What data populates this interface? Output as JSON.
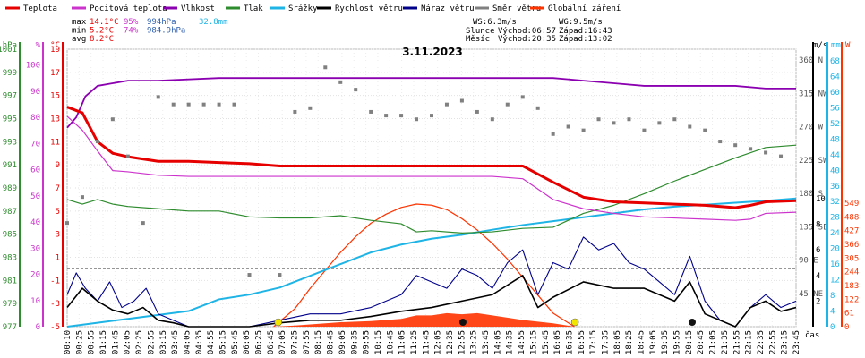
{
  "chart_data": {
    "type": "line",
    "title": "3.11.2023",
    "colors": {
      "teplota": "#e60000",
      "pocitova": "#cc33cc",
      "vlhkost": "#8b00b0",
      "tlak": "#2e8b2e",
      "srazky": "#1eb4e6",
      "rychlost": "#000000",
      "naraz": "#00008b",
      "smer": "#808080",
      "zareni": "#ff3300"
    },
    "legend": [
      {
        "key": "teplota",
        "label": "Teplota"
      },
      {
        "key": "pocitova",
        "label": "Pocitová teplota"
      },
      {
        "key": "vlhkost",
        "label": "Vlhkost"
      },
      {
        "key": "tlak",
        "label": "Tlak"
      },
      {
        "key": "srazky",
        "label": "Srážky"
      },
      {
        "key": "rychlost",
        "label": "Rychlost větru"
      },
      {
        "key": "naraz",
        "label": "Náraz větru"
      },
      {
        "key": "smer",
        "label": "Směr větru"
      },
      {
        "key": "zareni",
        "label": "Globální záření"
      }
    ],
    "stats": {
      "max_label": "max",
      "min_label": "min",
      "avg_label": "avg",
      "max_temp": "14.1°C",
      "max_hum": "95%",
      "max_press": "994hPa",
      "rain": "32.8mm",
      "min_temp": "5.2°C",
      "min_hum": "74%",
      "min_press": "984.9hPa",
      "avg_temp": "8.2°C"
    },
    "info": {
      "ws": "WS:6.3m/s",
      "wg": "WG:9.5m/s",
      "slunce": "Slunce",
      "sun_rise": "Východ:06:57",
      "sun_set": "Západ:16:43",
      "mesic": "Měsíc",
      "moon_rise": "Východ:20:35",
      "moon_set": "Západ:13:02"
    },
    "axes": {
      "hpa": {
        "unit": "hPa",
        "ticks": [
          1001,
          999,
          997,
          995,
          993,
          991,
          989,
          987,
          985,
          983,
          981,
          979,
          977
        ]
      },
      "pct": {
        "unit": "%",
        "ticks": [
          100,
          90,
          80,
          70,
          60,
          50,
          40,
          30,
          20,
          10,
          0
        ]
      },
      "temp": {
        "unit": "°C",
        "ticks": [
          19,
          17,
          15,
          13,
          11,
          9,
          7,
          5,
          3,
          1,
          -1,
          -3,
          -5
        ]
      },
      "dir": {
        "ticks": [
          "360 N",
          "315 NW",
          "270 W",
          "225 SW",
          "180 S",
          "135 SE",
          "90 E",
          "45 NE"
        ]
      },
      "ms": {
        "unit": "m/s",
        "ticks": [
          10,
          8,
          6,
          4,
          2
        ]
      },
      "mm": {
        "unit": "mm",
        "ticks": [
          68,
          64,
          60,
          56,
          52,
          48,
          44,
          40,
          36,
          32,
          28,
          24,
          20,
          16,
          12,
          8,
          4,
          0
        ]
      },
      "w": {
        "unit": "W",
        "ticks": [
          549,
          488,
          427,
          366,
          305,
          244,
          183,
          122,
          61,
          0
        ]
      },
      "x_label": "čas",
      "x_ticks": [
        "00:10",
        "00:25",
        "00:55",
        "01:15",
        "01:45",
        "02:05",
        "02:25",
        "02:55",
        "03:15",
        "03:45",
        "04:05",
        "04:35",
        "04:55",
        "05:15",
        "05:45",
        "06:05",
        "06:25",
        "06:45",
        "07:05",
        "07:25",
        "07:55",
        "08:15",
        "08:45",
        "09:05",
        "09:35",
        "09:55",
        "10:15",
        "10:45",
        "11:05",
        "11:25",
        "11:45",
        "12:05",
        "12:35",
        "12:55",
        "13:25",
        "13:45",
        "14:05",
        "14:35",
        "14:55",
        "15:15",
        "15:45",
        "16:05",
        "16:35",
        "16:55",
        "17:15",
        "17:35",
        "18:05",
        "18:25",
        "18:45",
        "19:05",
        "19:35",
        "19:55",
        "20:15",
        "20:45",
        "21:05",
        "21:35",
        "21:55",
        "22:15",
        "22:35",
        "22:55",
        "23:15",
        "23:45"
      ]
    },
    "series": {
      "teplota": {
        "x": [
          0,
          0.5,
          1,
          1.5,
          2,
          3,
          4,
          5,
          6,
          7,
          8,
          9,
          10,
          11,
          12,
          13,
          14,
          15,
          16,
          17,
          18,
          19,
          20,
          21,
          22,
          22.5,
          23,
          24
        ],
        "y": [
          14,
          13.5,
          11,
          10,
          9.7,
          9.3,
          9.3,
          9.2,
          9.1,
          8.9,
          8.9,
          8.9,
          8.9,
          8.9,
          8.9,
          8.9,
          8.9,
          8.9,
          7.5,
          6.2,
          5.8,
          5.7,
          5.6,
          5.5,
          5.3,
          5.5,
          5.8,
          5.9
        ]
      },
      "pocitova": {
        "x": [
          0,
          0.5,
          1,
          1.5,
          2,
          3,
          4,
          5,
          6,
          7,
          8,
          9,
          10,
          11,
          12,
          13,
          14,
          15,
          16,
          17,
          18,
          19,
          20,
          21,
          22,
          22.5,
          23,
          24
        ],
        "y": [
          13.2,
          12,
          10.2,
          8.5,
          8.4,
          8.1,
          8,
          8,
          8,
          8,
          8,
          8,
          8,
          8,
          8,
          8,
          8,
          7.8,
          6,
          5.2,
          4.8,
          4.5,
          4.4,
          4.3,
          4.2,
          4.3,
          4.8,
          4.9
        ]
      },
      "vlhkost": {
        "x": [
          0,
          0.3,
          0.6,
          1,
          1.5,
          2,
          3,
          5,
          8,
          10,
          12,
          14,
          16,
          17,
          18,
          19,
          20,
          21,
          22,
          23,
          24
        ],
        "y": [
          76,
          80,
          88,
          92,
          93,
          94,
          94,
          95,
          95,
          95,
          95,
          95,
          95,
          94,
          93,
          92,
          92,
          92,
          92,
          91,
          91
        ]
      },
      "tlak": {
        "x": [
          0,
          0.5,
          1,
          1.5,
          2,
          3,
          4,
          5,
          6,
          7,
          8,
          9,
          10,
          11,
          11.5,
          12,
          13,
          14,
          15,
          16,
          17,
          18,
          19,
          20,
          21,
          22,
          23,
          24
        ],
        "y": [
          988,
          987.6,
          988,
          987.6,
          987.4,
          987.2,
          987,
          987,
          986.5,
          986.4,
          986.4,
          986.6,
          986.2,
          985.9,
          985.2,
          985.3,
          985.1,
          985.2,
          985.5,
          985.6,
          986.8,
          987.5,
          988.5,
          989.6,
          990.6,
          991.6,
          992.5,
          992.7
        ]
      },
      "srazky": {
        "x": [
          0,
          1,
          2,
          3,
          4,
          5,
          6,
          7,
          8,
          9,
          10,
          11,
          12,
          13,
          14,
          15,
          16,
          17,
          18,
          19,
          20,
          21,
          22,
          23,
          24
        ],
        "y": [
          0,
          1,
          2,
          3,
          4,
          7,
          8.2,
          10,
          13,
          16,
          19,
          21,
          22.5,
          23.5,
          24.8,
          26,
          27,
          28,
          29,
          30,
          30.7,
          31.2,
          31.7,
          32.2,
          32.8
        ]
      },
      "rychlost": {
        "x": [
          0,
          0.5,
          1,
          1.5,
          2,
          2.5,
          3,
          3.5,
          4,
          5,
          6,
          7,
          8,
          9,
          10,
          11,
          12,
          13,
          14,
          15,
          15.5,
          16,
          17,
          18,
          19,
          20,
          20.5,
          21,
          22,
          22.5,
          23,
          23.5,
          24
        ],
        "y": [
          1.5,
          3,
          2,
          1.3,
          1,
          1.5,
          0.5,
          0.3,
          0,
          0,
          0,
          0.3,
          0.5,
          0.5,
          0.8,
          1.2,
          1.5,
          2,
          2.5,
          4,
          1.5,
          2.3,
          3.5,
          3,
          3,
          2,
          3.5,
          1,
          0,
          1.5,
          2,
          1.2,
          1.5
        ]
      },
      "naraz": {
        "x": [
          0,
          0.3,
          0.6,
          1,
          1.4,
          1.8,
          2.2,
          2.6,
          3,
          3.5,
          4,
          5,
          6,
          7,
          8,
          9,
          10,
          11,
          11.5,
          12,
          12.5,
          13,
          13.5,
          14,
          14.5,
          15,
          15.5,
          16,
          16.5,
          17,
          17.5,
          18,
          18.5,
          19,
          19.5,
          20,
          20.5,
          21,
          21.5,
          22,
          22.5,
          23,
          23.5,
          24
        ],
        "y": [
          2.5,
          4.2,
          3,
          2,
          3.5,
          1.5,
          2,
          3,
          1,
          0.5,
          0,
          0,
          0,
          0.5,
          1,
          1,
          1.5,
          2.5,
          4,
          3.5,
          3,
          4.5,
          4,
          3,
          5,
          6,
          2.5,
          5,
          4.5,
          7,
          6,
          6.5,
          5,
          4.5,
          3.5,
          2.5,
          5.5,
          2,
          0.5,
          0,
          1.5,
          2.5,
          1.5,
          2
        ]
      },
      "smer": {
        "x": [
          0,
          0.5,
          1,
          1.5,
          2,
          2.5,
          3,
          3.5,
          4,
          4.5,
          5,
          5.5,
          6,
          7,
          7.5,
          8,
          8.5,
          9,
          9.5,
          10,
          10.5,
          11,
          11.5,
          12,
          12.5,
          13,
          13.5,
          14,
          14.5,
          15,
          15.5,
          16,
          16.5,
          17,
          17.5,
          18,
          18.5,
          19,
          19.5,
          20,
          20.5,
          21,
          21.5,
          22,
          22.5,
          23,
          23.5
        ],
        "y": [
          140,
          175,
          250,
          280,
          230,
          140,
          310,
          300,
          300,
          300,
          300,
          300,
          70,
          70,
          290,
          295,
          350,
          330,
          320,
          290,
          285,
          285,
          280,
          285,
          300,
          305,
          290,
          280,
          300,
          310,
          295,
          260,
          270,
          265,
          280,
          275,
          280,
          265,
          275,
          280,
          270,
          265,
          250,
          245,
          240,
          235,
          230
        ]
      },
      "zareni": {
        "x": [
          6.8,
          7.5,
          8,
          8.5,
          9,
          9.5,
          10,
          10.5,
          11,
          11.5,
          12,
          12.5,
          13,
          13.5,
          14,
          14.5,
          15,
          15.5,
          16,
          16.7
        ],
        "y": [
          0,
          80,
          170,
          250,
          330,
          400,
          460,
          500,
          530,
          545,
          540,
          520,
          480,
          430,
          370,
          300,
          220,
          140,
          60,
          0
        ]
      },
      "zareni_mer": {
        "x": [
          6.8,
          7.5,
          8,
          9,
          10,
          11,
          11.5,
          12,
          12.5,
          13,
          13.5,
          14,
          15,
          16,
          16.7
        ],
        "y": [
          0,
          5,
          10,
          20,
          25,
          35,
          50,
          50,
          60,
          55,
          60,
          50,
          30,
          15,
          0
        ]
      }
    },
    "markers": {
      "sun": [
        {
          "x": 6.95
        },
        {
          "x": 16.72
        }
      ],
      "moon": [
        {
          "x": 13.03
        },
        {
          "x": 20.58
        }
      ]
    }
  }
}
